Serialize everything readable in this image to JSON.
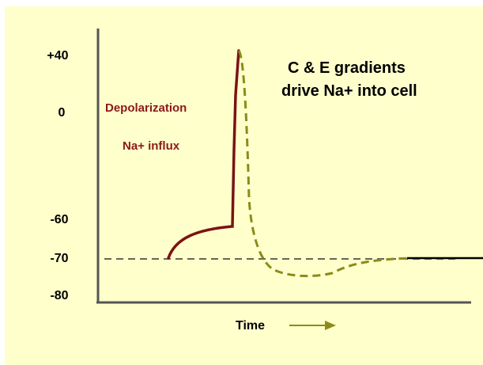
{
  "title": {
    "line1": "C & E gradients",
    "line2": "drive Na+ into cell"
  },
  "annotations": {
    "depolarization": "Depolarization",
    "influx": "Na+ influx"
  },
  "axis": {
    "y_ticks": [
      "+40",
      "0",
      "-60",
      "-70",
      "-80"
    ],
    "x_label": "Time"
  },
  "colors": {
    "background": "#ffffcc",
    "depolarization_curve": "#7a1313",
    "repolarization_curve": "#8b8b1a",
    "arrow": "#8b8b1a",
    "threshold_line": "#555555",
    "resting_line": "#000000",
    "annotation_text": "#8b1a1a"
  },
  "chart_data": {
    "type": "line",
    "series": [
      {
        "name": "",
        "style": "solid",
        "points_mV": [
          [
            0,
            -70
          ],
          [
            1,
            -62
          ],
          [
            1.1,
            40
          ]
        ]
      },
      {
        "name": "",
        "style": "dashed",
        "points_mV": [
          [
            1.1,
            40
          ],
          [
            1.5,
            -70
          ],
          [
            2.0,
            -75
          ],
          [
            3.0,
            -70
          ]
        ]
      }
    ],
    "reference_lines": [
      {
        "y": -70,
        "style": "dashed"
      },
      {
        "y": -70,
        "style": "solid",
        "segment": "tail"
      }
    ]
  }
}
